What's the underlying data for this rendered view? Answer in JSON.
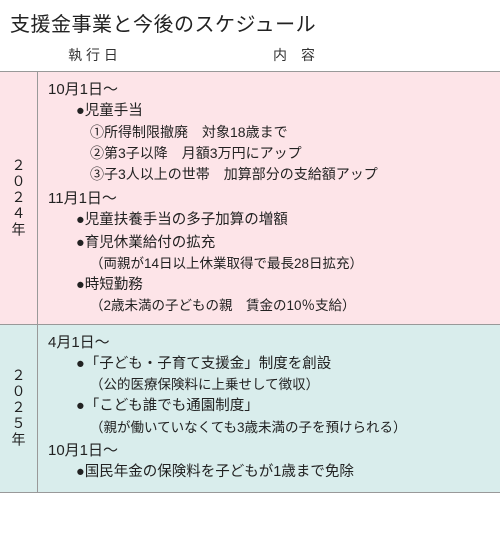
{
  "title": "支援金事業と今後のスケジュール",
  "headers": {
    "date": "執 行 日",
    "content": "内　容"
  },
  "colors": {
    "bg2024": "#fde4e8",
    "bg2025": "#d9edec",
    "border": "#999999",
    "text": "#222222"
  },
  "sections": [
    {
      "year": "２０２４年",
      "bgKey": "bg2024",
      "blocks": [
        {
          "date": "10月1日～",
          "items": [
            {
              "bullet": "●児童手当",
              "subs": [
                "①所得制限撤廃　対象18歳まで",
                "②第3子以降　月額3万円にアップ",
                "③子3人以上の世帯　加算部分の支給額アップ"
              ]
            }
          ]
        },
        {
          "date": "11月1日～",
          "items": [
            {
              "bullet": "●児童扶養手当の多子加算の増額"
            },
            {
              "bullet": "●育児休業給付の拡充",
              "note": "（両親が14日以上休業取得で最長28日拡充）"
            },
            {
              "bullet": "●時短勤務",
              "note": "（2歳未満の子どもの親　賃金の10％支給）"
            }
          ]
        }
      ]
    },
    {
      "year": "２０２５年",
      "bgKey": "bg2025",
      "blocks": [
        {
          "date": "4月1日～",
          "items": [
            {
              "bullet": "●「子ども・子育て支援金」制度を創設",
              "note": "（公的医療保険料に上乗せして徴収）"
            },
            {
              "bullet": "●「こども誰でも通園制度」",
              "note": "（親が働いていなくても3歳未満の子を預けられる）"
            }
          ]
        },
        {
          "date": "10月1日～",
          "items": [
            {
              "bullet": "●国民年金の保険料を子どもが1歳まで免除"
            }
          ]
        }
      ]
    }
  ]
}
